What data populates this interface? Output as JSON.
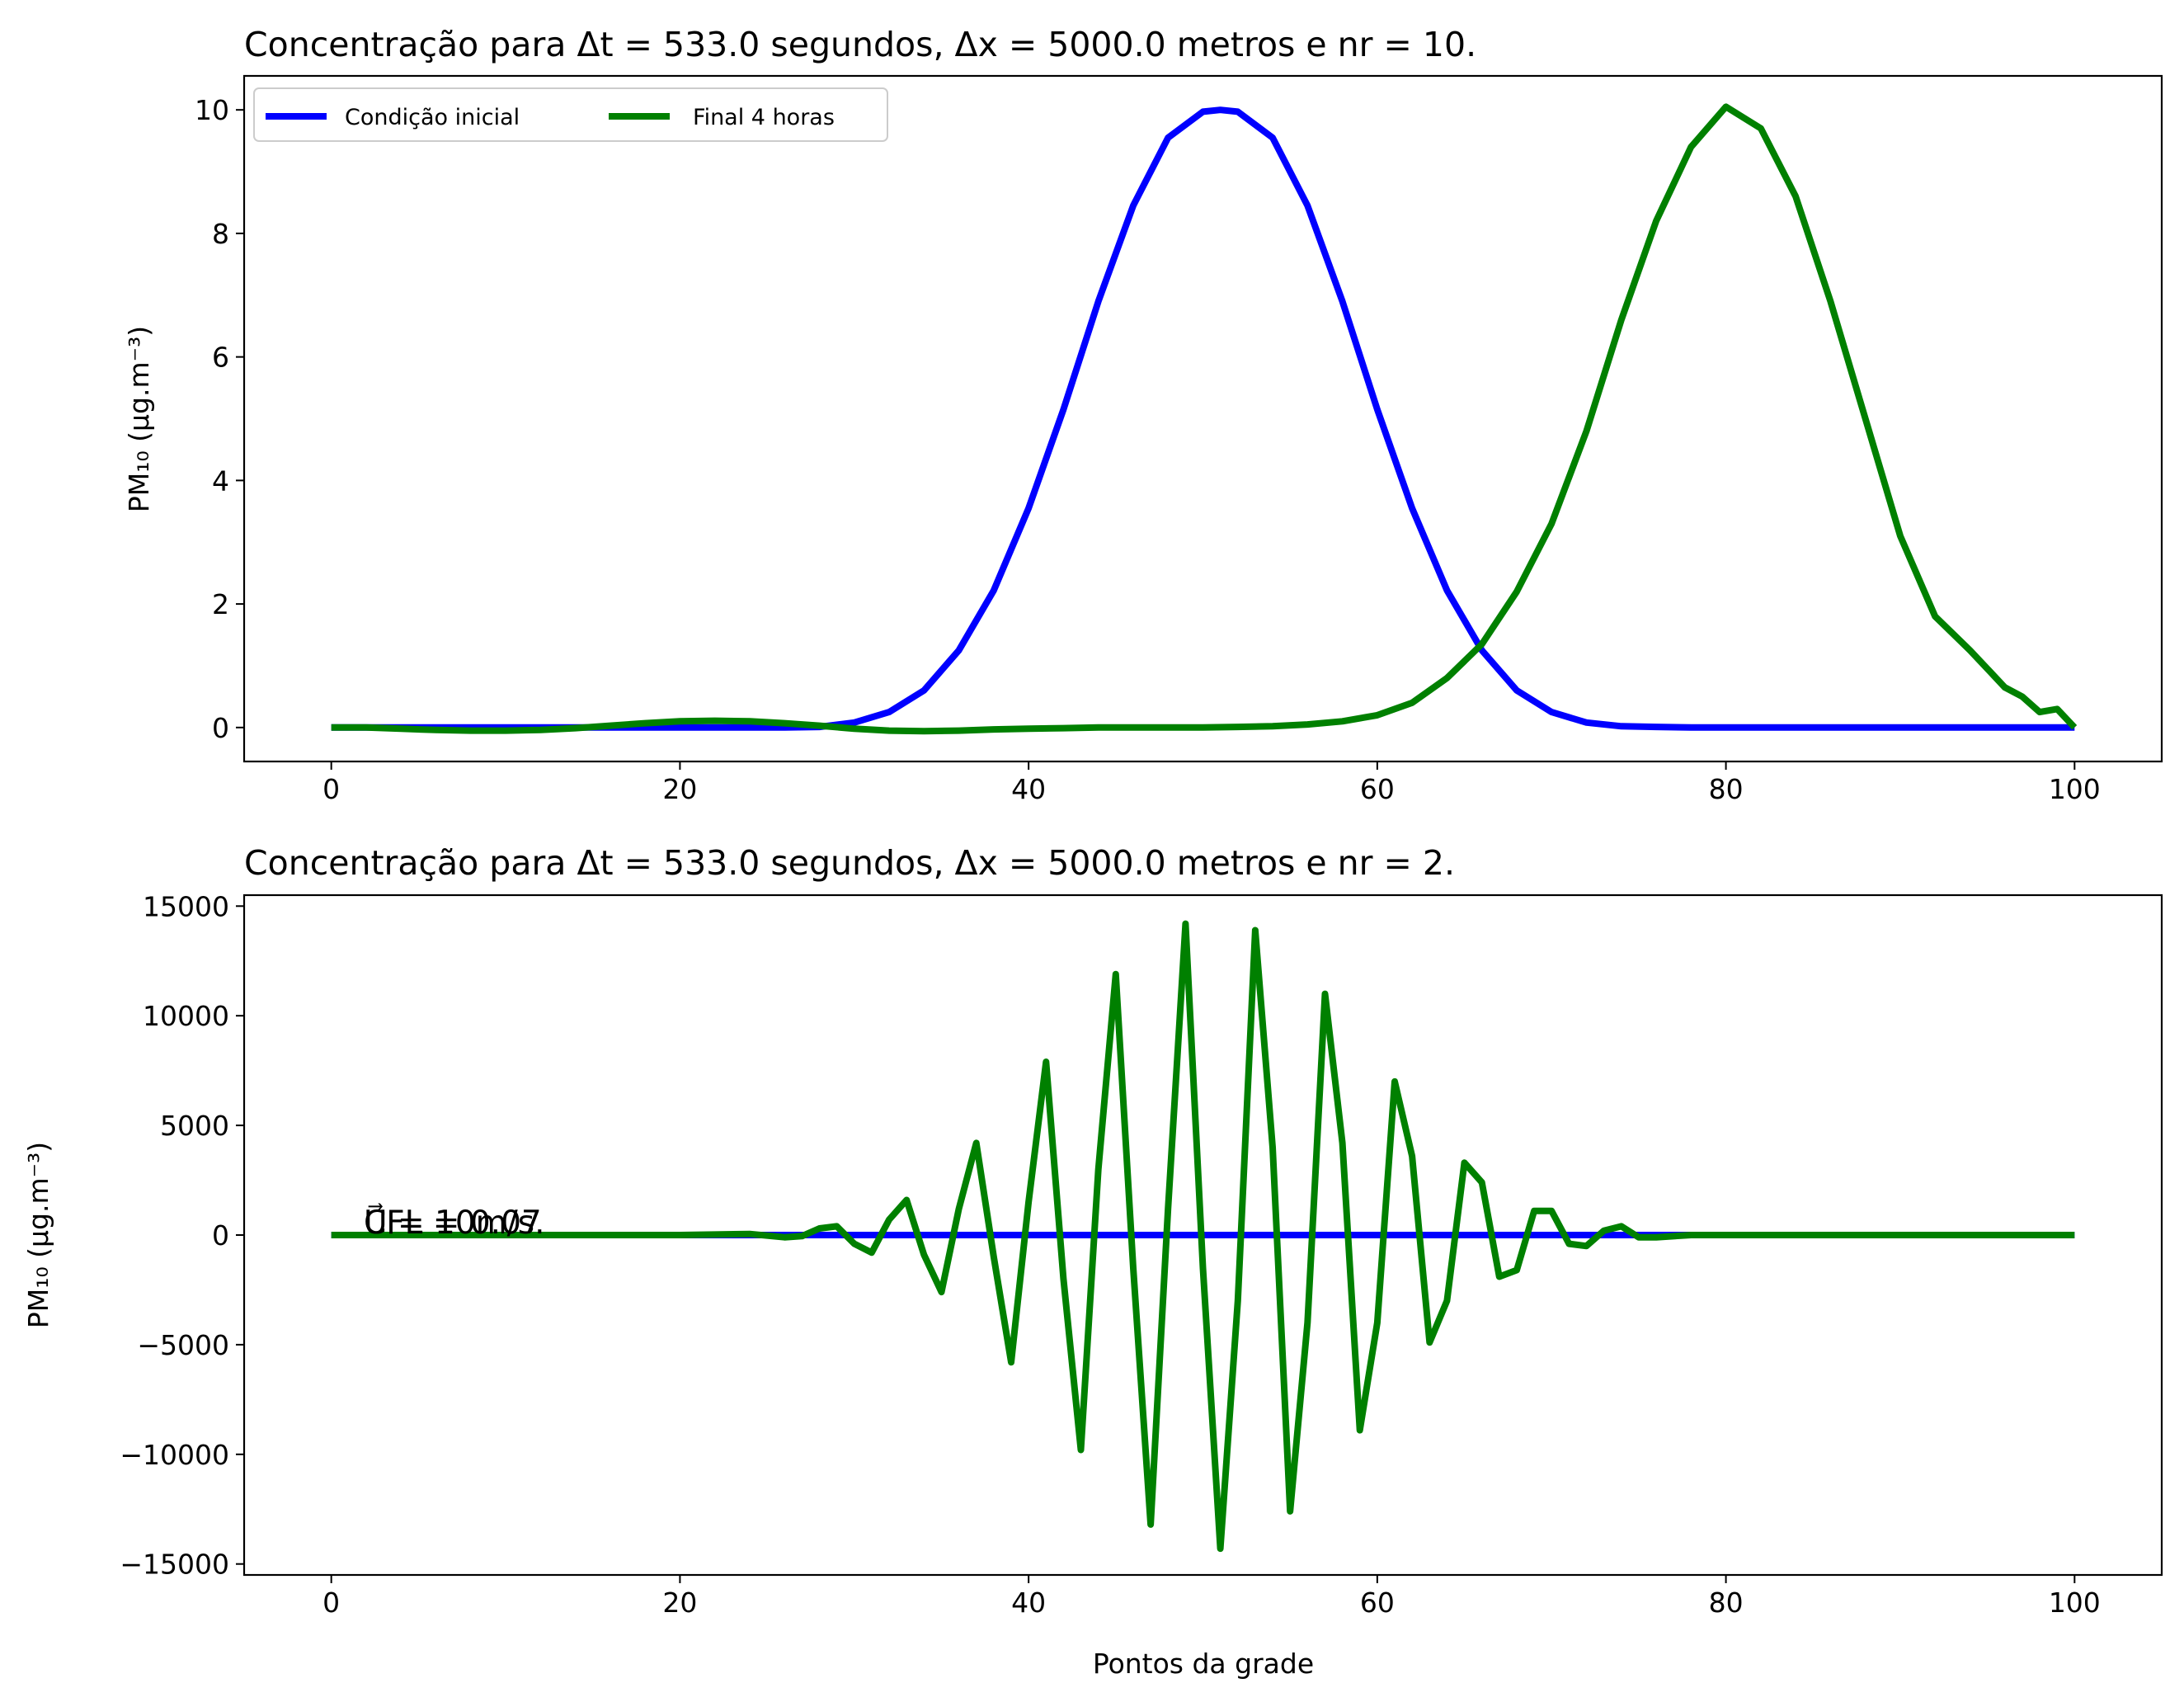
{
  "chart_data": [
    {
      "type": "line",
      "title": "Concentração para Δt = 533.0 segundos, Δx = 5000.0 metros e nr = 10.",
      "xlabel": "",
      "ylabel": "PM₁₀ (μg.m⁻³)",
      "xlim": [
        -5,
        105
      ],
      "ylim": [
        -0.55,
        10.55
      ],
      "xticks": [
        0,
        20,
        40,
        60,
        80,
        100
      ],
      "yticks": [
        0,
        2,
        4,
        6,
        8,
        10
      ],
      "grid": false,
      "legend": {
        "position": "top-left",
        "columns": 2
      },
      "series": [
        {
          "name": "Condição inicial",
          "color": "#0000ff",
          "x": [
            0,
            2,
            4,
            6,
            8,
            10,
            12,
            14,
            16,
            18,
            20,
            22,
            24,
            26,
            28,
            30,
            32,
            34,
            36,
            38,
            40,
            42,
            44,
            46,
            48,
            50,
            51,
            52,
            54,
            56,
            58,
            60,
            62,
            64,
            66,
            68,
            70,
            72,
            74,
            76,
            78,
            80,
            82,
            84,
            86,
            88,
            90,
            92,
            94,
            96,
            98,
            100
          ],
          "y": [
            0,
            0,
            0,
            0,
            0,
            0,
            0,
            0,
            0,
            0,
            0,
            0,
            0,
            0,
            0.01,
            0.08,
            0.25,
            0.6,
            1.25,
            2.22,
            3.55,
            5.15,
            6.9,
            8.45,
            9.55,
            9.97,
            10.0,
            9.97,
            9.55,
            8.45,
            6.9,
            5.15,
            3.55,
            2.22,
            1.25,
            0.6,
            0.25,
            0.08,
            0.02,
            0.01,
            0,
            0,
            0,
            0,
            0,
            0,
            0,
            0,
            0,
            0,
            0,
            0
          ]
        },
        {
          "name": "Final 4 horas",
          "color": "#008000",
          "x": [
            0,
            2,
            4,
            6,
            8,
            10,
            12,
            14,
            16,
            18,
            20,
            22,
            24,
            26,
            28,
            30,
            32,
            34,
            36,
            38,
            40,
            42,
            44,
            46,
            48,
            50,
            52,
            54,
            56,
            58,
            60,
            62,
            64,
            66,
            68,
            70,
            72,
            74,
            76,
            78,
            80,
            82,
            84,
            86,
            88,
            90,
            92,
            94,
            96,
            97,
            98,
            99,
            100
          ],
          "y": [
            0,
            0,
            -0.02,
            -0.04,
            -0.05,
            -0.05,
            -0.04,
            -0.01,
            0.03,
            0.07,
            0.1,
            0.11,
            0.1,
            0.07,
            0.03,
            -0.02,
            -0.05,
            -0.06,
            -0.05,
            -0.03,
            -0.02,
            -0.01,
            0,
            0,
            0,
            0,
            0.01,
            0.02,
            0.05,
            0.1,
            0.2,
            0.4,
            0.8,
            1.35,
            2.2,
            3.3,
            4.8,
            6.6,
            8.2,
            9.4,
            10.05,
            9.7,
            8.6,
            6.9,
            5.0,
            3.1,
            1.8,
            1.25,
            0.65,
            0.5,
            0.25,
            0.3,
            0
          ]
        }
      ]
    },
    {
      "type": "line",
      "title": "Concentração para Δt = 533.0 segundos, Δx = 5000.0 metros e nr = 2.",
      "xlabel": "Pontos da grade",
      "ylabel": "PM₁₀ (μg.m⁻³)",
      "xlim": [
        -5,
        105
      ],
      "ylim": [
        -15500,
        15500
      ],
      "xticks": [
        0,
        20,
        40,
        60,
        80,
        100
      ],
      "yticks": [
        -15000,
        -10000,
        -5000,
        0,
        5000,
        10000,
        15000
      ],
      "yticklabels": [
        "−15000",
        "−10000",
        "−5000",
        "0",
        "5000",
        "10000",
        "15000"
      ],
      "grid": false,
      "annotation": "CFL = 0.07",
      "annotation_overlap": "U⃗ = 10m/s.",
      "series": [
        {
          "name": "Condição inicial",
          "color": "#0000ff",
          "x": [
            0,
            100
          ],
          "y": [
            0,
            0
          ]
        },
        {
          "name": "Final 4 horas",
          "color": "#008000",
          "x": [
            0,
            20,
            24,
            26,
            27,
            28,
            29,
            30,
            31,
            32,
            33,
            34,
            35,
            36,
            37,
            38,
            39,
            40,
            41,
            42,
            43,
            44,
            45,
            46,
            47,
            48,
            49,
            50,
            51,
            52,
            53,
            54,
            55,
            56,
            57,
            58,
            59,
            60,
            61,
            62,
            63,
            64,
            65,
            66,
            67,
            68,
            69,
            70,
            71,
            72,
            73,
            74,
            75,
            76,
            78,
            80,
            100
          ],
          "y": [
            0,
            0,
            50,
            -100,
            -50,
            300,
            400,
            -400,
            -800,
            700,
            1600,
            -900,
            -2600,
            1200,
            4200,
            -1000,
            -5800,
            1500,
            7900,
            -2000,
            -9800,
            3000,
            11900,
            -1500,
            -13200,
            1200,
            14200,
            -1500,
            -14300,
            -3000,
            13900,
            4000,
            -12600,
            -4000,
            11000,
            4200,
            -8900,
            -4000,
            7000,
            3600,
            -4900,
            -3000,
            3300,
            2400,
            -1900,
            -1600,
            1100,
            1100,
            -400,
            -500,
            200,
            400,
            -100,
            -100,
            0,
            0,
            0
          ]
        }
      ]
    }
  ]
}
